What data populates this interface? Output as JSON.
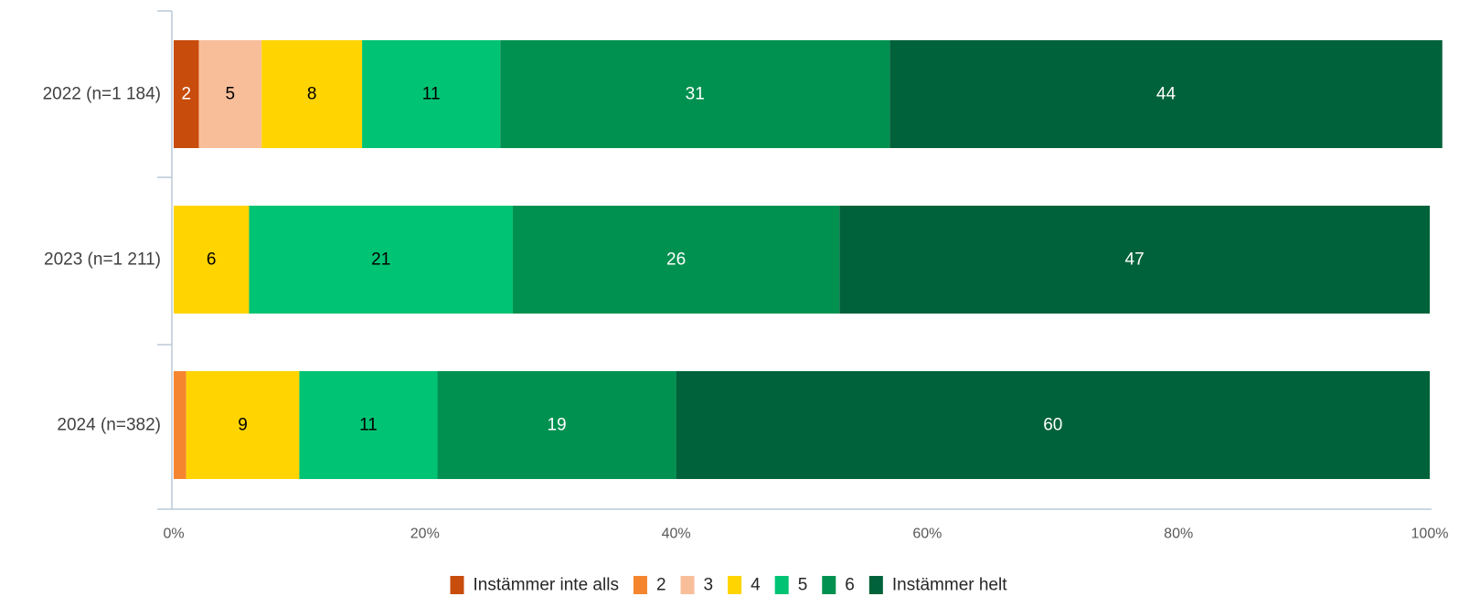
{
  "chart_data": {
    "type": "bar",
    "orientation": "horizontal",
    "stacked": true,
    "title": "",
    "xlabel": "",
    "ylabel": "",
    "xlim": [
      0,
      100
    ],
    "x_ticks": [
      "0%",
      "20%",
      "40%",
      "60%",
      "80%",
      "100%"
    ],
    "grid": false,
    "legend_position": "bottom",
    "categories": [
      "2022 (n=1 184)",
      "2023 (n=1 211)",
      "2024 (n=382)"
    ],
    "series": [
      {
        "name": "Instämmer inte alls",
        "color": "#C84C0C",
        "values": [
          2,
          0,
          0
        ],
        "labels": [
          "2",
          "",
          ""
        ],
        "label_color": "#ffffff"
      },
      {
        "name": "2",
        "color": "#F5862F",
        "values": [
          0,
          0,
          1
        ],
        "labels": [
          "",
          "",
          ""
        ],
        "label_color": "#000000"
      },
      {
        "name": "3",
        "color": "#F8BE9A",
        "values": [
          5,
          0,
          0
        ],
        "labels": [
          "5",
          "",
          ""
        ],
        "label_color": "#000000"
      },
      {
        "name": "4",
        "color": "#FFD400",
        "values": [
          8,
          6,
          9
        ],
        "labels": [
          "8",
          "6",
          "9"
        ],
        "label_color": "#000000"
      },
      {
        "name": "5",
        "color": "#00C374",
        "values": [
          11,
          21,
          11
        ],
        "labels": [
          "11",
          "21",
          "11"
        ],
        "label_color": "#000000"
      },
      {
        "name": "6",
        "color": "#009150",
        "values": [
          31,
          26,
          19
        ],
        "labels": [
          "31",
          "26",
          "19"
        ],
        "label_color": "#ffffff"
      },
      {
        "name": "Instämmer helt",
        "color": "#00623A",
        "values": [
          44,
          47,
          60
        ],
        "labels": [
          "44",
          "47",
          "60"
        ],
        "label_color": "#ffffff"
      }
    ]
  }
}
